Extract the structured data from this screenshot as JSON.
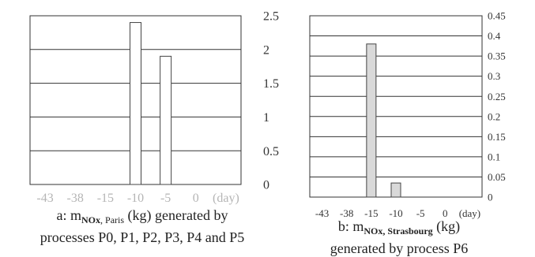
{
  "chart_data": [
    {
      "type": "bar",
      "categories": [
        "-43",
        "-38",
        "-15",
        "-10",
        "-5",
        "0"
      ],
      "x_unit": "day",
      "values": [
        0,
        0,
        0,
        2.4,
        1.9,
        0
      ],
      "ylim": [
        0,
        2.5
      ],
      "yticks": [
        "0",
        "0.5",
        "1",
        "1.5",
        "2",
        "2.5"
      ],
      "grid": true,
      "bar_fill": "#ffffff",
      "bar_stroke": "#444444",
      "caption": {
        "prefix": "a: m",
        "sub_bold": "NOx",
        "sub_rest": ", Paris",
        "suffix": " (kg) generated by",
        "line2": "processes P0, P1, P2, P3, P4 and P5"
      }
    },
    {
      "type": "bar",
      "categories": [
        "-43",
        "-38",
        "-15",
        "-10",
        "-5",
        "0"
      ],
      "x_unit": "day",
      "values": [
        0,
        0,
        0.38,
        0.035,
        0,
        0
      ],
      "ylim": [
        0,
        0.45
      ],
      "yticks": [
        "0",
        "0.05",
        "0.1",
        "0.15",
        "0.2",
        "0.25",
        "0.3",
        "0.35",
        "0.4",
        "0.45"
      ],
      "grid": true,
      "bar_fill": "#d9d9d9",
      "bar_stroke": "#444444",
      "caption": {
        "prefix": "b: m",
        "sub_bold": "NOx, Strasbourg",
        "sub_rest": "",
        "suffix": " (kg)",
        "line2": "generated by process P6"
      }
    }
  ]
}
